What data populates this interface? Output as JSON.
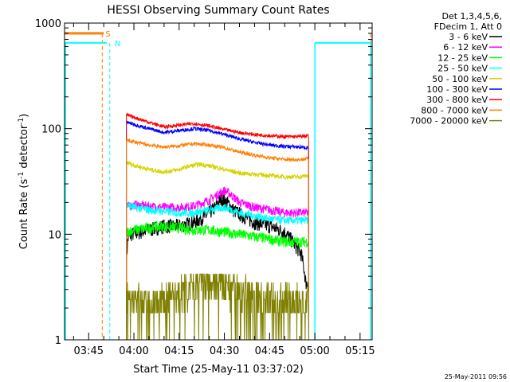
{
  "chart_data": {
    "type": "line",
    "title": "HESSI Observing Summary Count Rates",
    "xlabel": "Start Time (25-May-11 03:37:02)",
    "ylabel_main": "Count Rate (s",
    "ylabel_sup": "-1",
    "ylabel_mid": " detector",
    "ylabel_end": ")",
    "yscale": "log",
    "ylim": [
      1,
      1000
    ],
    "xlim_minutes": [
      217.0,
      319.0
    ],
    "y_ticks": [
      {
        "value": 1,
        "label": "1"
      },
      {
        "value": 10,
        "label": "10"
      },
      {
        "value": 100,
        "label": "100"
      },
      {
        "value": 1000,
        "label": "1000"
      }
    ],
    "x_ticks": [
      {
        "value": 225,
        "label": "03:45"
      },
      {
        "value": 240,
        "label": "04:00"
      },
      {
        "value": 255,
        "label": "04:15"
      },
      {
        "value": 270,
        "label": "04:30"
      },
      {
        "value": 285,
        "label": "04:45"
      },
      {
        "value": 300,
        "label": "05:00"
      },
      {
        "value": 315,
        "label": "05:15"
      }
    ],
    "legend_header": [
      "Det 1,3,4,5,6,",
      "FDecim 1, Att 0"
    ],
    "legend_placement": "outside-right",
    "series": [
      {
        "name": "3 - 6 keV",
        "color": "#000000",
        "x": [
          237.5,
          238,
          239,
          242,
          245,
          250,
          255,
          260,
          264,
          267,
          269,
          271,
          273,
          276,
          280,
          285,
          290,
          292,
          294,
          295.5,
          297,
          298
        ],
        "y": [
          5.5,
          9,
          10,
          10.5,
          11,
          12,
          12,
          13,
          15,
          18,
          22,
          20,
          17,
          15,
          13,
          12,
          10.5,
          9,
          7.5,
          6.5,
          3.5,
          3.3
        ]
      },
      {
        "name": "6 - 12 keV",
        "color": "#ff00ff",
        "x": [
          237.5,
          240,
          245,
          250,
          255,
          260,
          265,
          268,
          270,
          272,
          275,
          280,
          285,
          290,
          295,
          298
        ],
        "y": [
          18,
          19,
          18.5,
          18,
          18,
          18.5,
          21,
          24,
          26,
          24,
          20,
          18,
          17,
          16,
          16,
          16
        ]
      },
      {
        "name": "12 - 25 keV",
        "color": "#00ff00",
        "x": [
          237.5,
          240,
          245,
          250,
          255,
          260,
          265,
          270,
          275,
          280,
          285,
          290,
          295,
          298
        ],
        "y": [
          10.5,
          11,
          11.5,
          12,
          11.5,
          11,
          11,
          10.5,
          10,
          9.5,
          9,
          8.5,
          8.5,
          8.5
        ]
      },
      {
        "name": "25 - 50 keV",
        "color": "#00ffff",
        "x": [
          237.5,
          240,
          245,
          250,
          255,
          260,
          265,
          270,
          275,
          280,
          285,
          290,
          295,
          298
        ],
        "y": [
          19,
          18,
          17,
          16.5,
          16,
          16,
          17,
          18,
          16,
          15,
          14,
          13.5,
          13.5,
          13.5
        ]
      },
      {
        "name": "50 - 100 keV",
        "color": "#d4d400",
        "x": [
          237.5,
          240,
          245,
          250,
          255,
          258,
          262,
          266,
          270,
          275,
          280,
          285,
          290,
          295,
          298
        ],
        "y": [
          48,
          45,
          41,
          39,
          41,
          44,
          46,
          44,
          41,
          38,
          37,
          36,
          35,
          35,
          36
        ]
      },
      {
        "name": "100 - 300 keV",
        "color": "#0000ff",
        "x": [
          237.5,
          240,
          245,
          250,
          255,
          260,
          265,
          270,
          275,
          280,
          285,
          290,
          295,
          298
        ],
        "y": [
          115,
          110,
          100,
          92,
          96,
          100,
          96,
          88,
          80,
          74,
          70,
          68,
          67,
          66
        ]
      },
      {
        "name": "300 - 800 keV",
        "color": "#ff0000",
        "x": [
          237.5,
          240,
          245,
          250,
          255,
          260,
          265,
          270,
          275,
          280,
          285,
          290,
          295,
          298
        ],
        "y": [
          135,
          128,
          115,
          104,
          108,
          112,
          106,
          98,
          92,
          88,
          86,
          84,
          84,
          86
        ]
      },
      {
        "name": "800 - 7000 keV",
        "color": "#ff8000",
        "x": [
          237.5,
          240,
          245,
          250,
          255,
          260,
          265,
          270,
          275,
          280,
          285,
          290,
          295,
          298
        ],
        "y": [
          78,
          75,
          70,
          67,
          69,
          72,
          70,
          66,
          60,
          56,
          53,
          51,
          51,
          52
        ]
      },
      {
        "name": "7000 - 20000 keV",
        "color": "#808000",
        "x": [
          237.5,
          240,
          245,
          250,
          255,
          260,
          265,
          270,
          275,
          280,
          285,
          290,
          295,
          298
        ],
        "y": [
          3,
          2.4,
          2.2,
          2.4,
          2.8,
          3.4,
          3.6,
          3.3,
          3.0,
          2.7,
          2.5,
          2.5,
          2.3,
          2.3
        ]
      }
    ],
    "attenuator_state": {
      "label": "S",
      "color": "#ff8000",
      "level": 800,
      "x_range": [
        217,
        230
      ],
      "markers": [
        229.5,
        318.5
      ]
    },
    "night_state": {
      "label": "N",
      "color": "#00ffff",
      "level": 650,
      "segments": [
        [
          217,
          231
        ],
        [
          300,
          318.5
        ]
      ],
      "markers_solid": [
        217.3,
        300,
        318.5
      ],
      "marker_dashed": 232
    }
  },
  "footer": {
    "timestamp": "25-May-2011 09:56"
  }
}
